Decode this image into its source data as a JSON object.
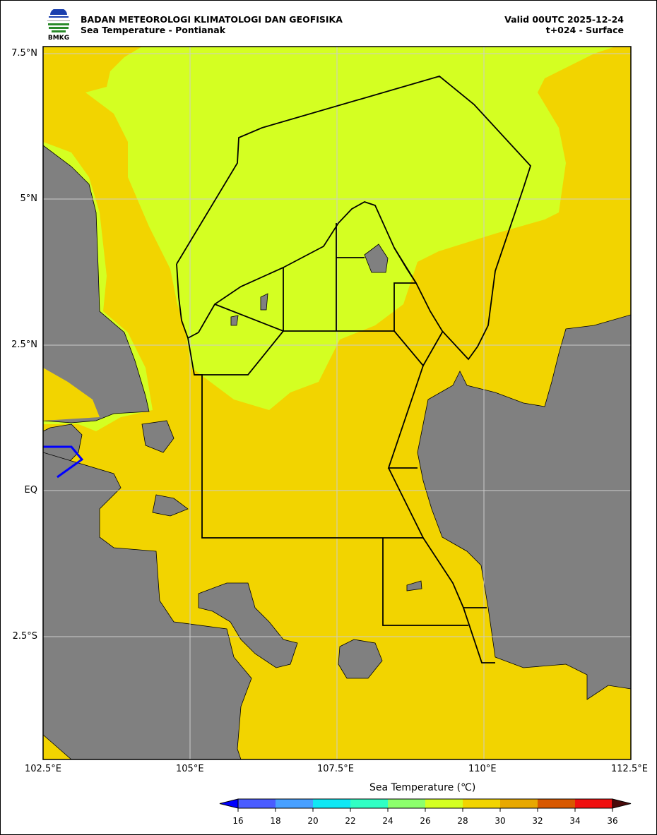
{
  "header": {
    "org": "BADAN METEOROLOGI KLIMATOLOGI DAN GEOFISIKA",
    "title": "Sea Temperature - Pontianak",
    "valid": "Valid 00UTC 2025-12-24",
    "step": "t+024 - Surface",
    "logo_text": "BMKG"
  },
  "map": {
    "region": "Pontianak",
    "lon_range": [
      102.5,
      112.5
    ],
    "lat_range": [
      -4.6,
      7.6
    ],
    "lat_ticks": [
      "7.5°N",
      "5°N",
      "2.5°N",
      "EQ",
      "2.5°S"
    ],
    "lon_ticks": [
      "102.5°E",
      "105°E",
      "107.5°E",
      "110°E",
      "112.5°E"
    ],
    "colors": {
      "land": "#808080",
      "sea_28_30": "#f2d400",
      "sea_26_28": "#d4ff22",
      "zone_line": "#000000"
    }
  },
  "colorbar": {
    "title": "Sea Temperature (℃)",
    "ticks": [
      "16",
      "18",
      "20",
      "22",
      "24",
      "26",
      "28",
      "30",
      "32",
      "34",
      "36"
    ],
    "colors": [
      "#4a5cff",
      "#48a0ff",
      "#10e8f4",
      "#30ffc4",
      "#8cff6c",
      "#d4ff22",
      "#f2d400",
      "#e8a800",
      "#d85800",
      "#f01010"
    ],
    "under_color": "#0000ff",
    "over_color": "#4a0a0a"
  }
}
